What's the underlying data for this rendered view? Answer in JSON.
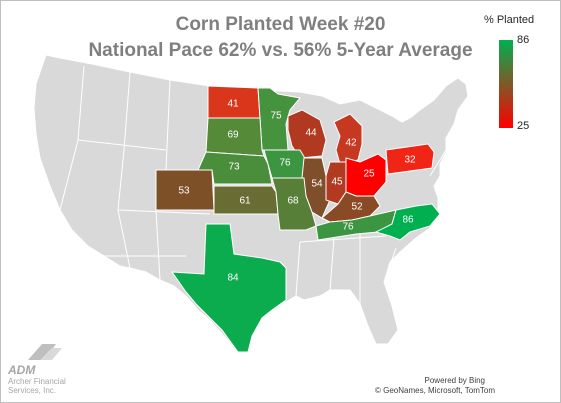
{
  "title_line1": "Corn Planted Week #20",
  "title_line2": "National Pace 62% vs. 56% 5-Year Average",
  "legend": {
    "title": "% Planted",
    "max": "86",
    "min": "25",
    "color_max": "#00b050",
    "color_min": "#ff0000"
  },
  "logo": {
    "mark": "ADM",
    "line1": "Archer Financial",
    "line2": "Services, Inc."
  },
  "credits": {
    "line1": "Powered by Bing",
    "line2": "© GeoNames, Microsoft, TomTom"
  },
  "states": [
    {
      "state": "North Dakota",
      "value": 41,
      "label": "41"
    },
    {
      "state": "Minnesota",
      "value": 75,
      "label": "75"
    },
    {
      "state": "Wisconsin",
      "value": 44,
      "label": "44"
    },
    {
      "state": "Michigan",
      "value": 42,
      "label": "42"
    },
    {
      "state": "South Dakota",
      "value": 69,
      "label": "69"
    },
    {
      "state": "Nebraska",
      "value": 73,
      "label": "73"
    },
    {
      "state": "Iowa",
      "value": 76,
      "label": "76"
    },
    {
      "state": "Illinois",
      "value": 54,
      "label": "54"
    },
    {
      "state": "Indiana",
      "value": 45,
      "label": "45"
    },
    {
      "state": "Ohio",
      "value": 25,
      "label": "25"
    },
    {
      "state": "Pennsylvania",
      "value": 32,
      "label": "32"
    },
    {
      "state": "Colorado",
      "value": 53,
      "label": "53"
    },
    {
      "state": "Kansas",
      "value": 61,
      "label": "61"
    },
    {
      "state": "Missouri",
      "value": 68,
      "label": "68"
    },
    {
      "state": "Kentucky",
      "value": 52,
      "label": "52"
    },
    {
      "state": "Tennessee",
      "value": 76,
      "label": "76"
    },
    {
      "state": "North Carolina",
      "value": 86,
      "label": "86"
    },
    {
      "state": "Texas",
      "value": 84,
      "label": "84"
    }
  ]
}
